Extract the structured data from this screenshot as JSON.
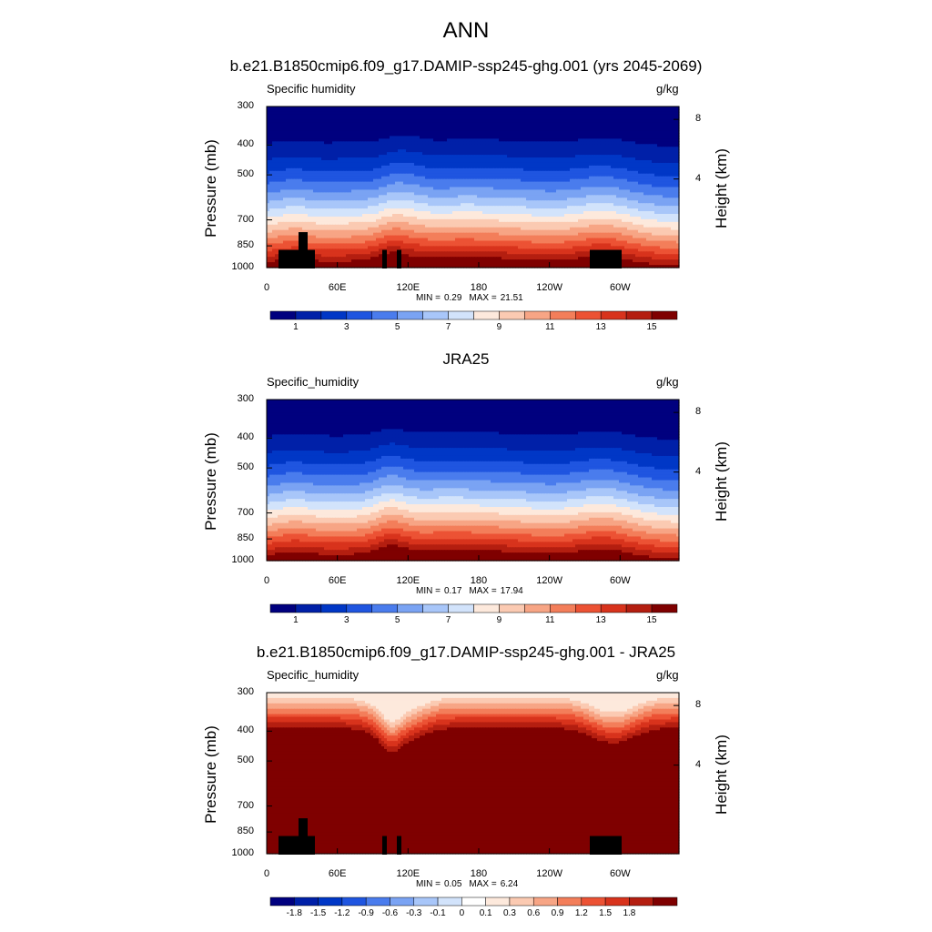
{
  "title": "ANN",
  "colors": {
    "sequential": [
      "#00007f",
      "#0020a8",
      "#0037c6",
      "#1f55e0",
      "#4a7ced",
      "#7aa3f3",
      "#a8c6f9",
      "#d2e3fb",
      "#fde9dc",
      "#fbcab2",
      "#f7a585",
      "#f37e5a",
      "#ec5234",
      "#d8331c",
      "#b41e10",
      "#7f0000"
    ],
    "land": "#000000"
  },
  "chart_data": [
    {
      "type": "heatmap",
      "title": "b.e21.B1850cmip6.f09_g17.DAMIP-ssp245-ghg.001 (yrs 2045-2069)",
      "variable": "Specific humidity",
      "units": "g/kg",
      "ylabel": "Pressure (mb)",
      "y2label": "Height (km)",
      "y_ticks": [
        "300",
        "400",
        "500",
        "700",
        "850",
        "1000"
      ],
      "y2_ticks": [
        "8",
        "4"
      ],
      "x_ticks": [
        "0",
        "60E",
        "120E",
        "180",
        "120W",
        "60W"
      ],
      "min_label": "MIN =",
      "min": "0.29",
      "max_label": "MAX =",
      "max": "21.51",
      "colorbar_labels": [
        "1",
        "3",
        "5",
        "7",
        "9",
        "11",
        "13",
        "15"
      ]
    },
    {
      "type": "heatmap",
      "title": "JRA25",
      "variable": "Specific_humidity",
      "units": "g/kg",
      "ylabel": "Pressure (mb)",
      "y2label": "Height (km)",
      "y_ticks": [
        "300",
        "400",
        "500",
        "700",
        "850",
        "1000"
      ],
      "y2_ticks": [
        "8",
        "4"
      ],
      "x_ticks": [
        "0",
        "60E",
        "120E",
        "180",
        "120W",
        "60W"
      ],
      "min_label": "MIN =",
      "min": "0.17",
      "max_label": "MAX =",
      "max": "17.94",
      "colorbar_labels": [
        "1",
        "3",
        "5",
        "7",
        "9",
        "11",
        "13",
        "15"
      ]
    },
    {
      "type": "heatmap",
      "title": "b.e21.B1850cmip6.f09_g17.DAMIP-ssp245-ghg.001 - JRA25",
      "variable": "Specific_humidity",
      "units": "g/kg",
      "ylabel": "Pressure (mb)",
      "y2label": "Height (km)",
      "y_ticks": [
        "300",
        "400",
        "500",
        "700",
        "850",
        "1000"
      ],
      "y2_ticks": [
        "8",
        "4"
      ],
      "x_ticks": [
        "0",
        "60E",
        "120E",
        "180",
        "120W",
        "60W"
      ],
      "min_label": "MIN =",
      "min": "0.05",
      "max_label": "MAX =",
      "max": "6.24",
      "colorbar_labels": [
        "-1.8",
        "-1.5",
        "-1.2",
        "-0.9",
        "-0.6",
        "-0.3",
        "-0.1",
        "0",
        "0.1",
        "0.3",
        "0.6",
        "0.9",
        "1.2",
        "1.5",
        "1.8"
      ]
    }
  ]
}
